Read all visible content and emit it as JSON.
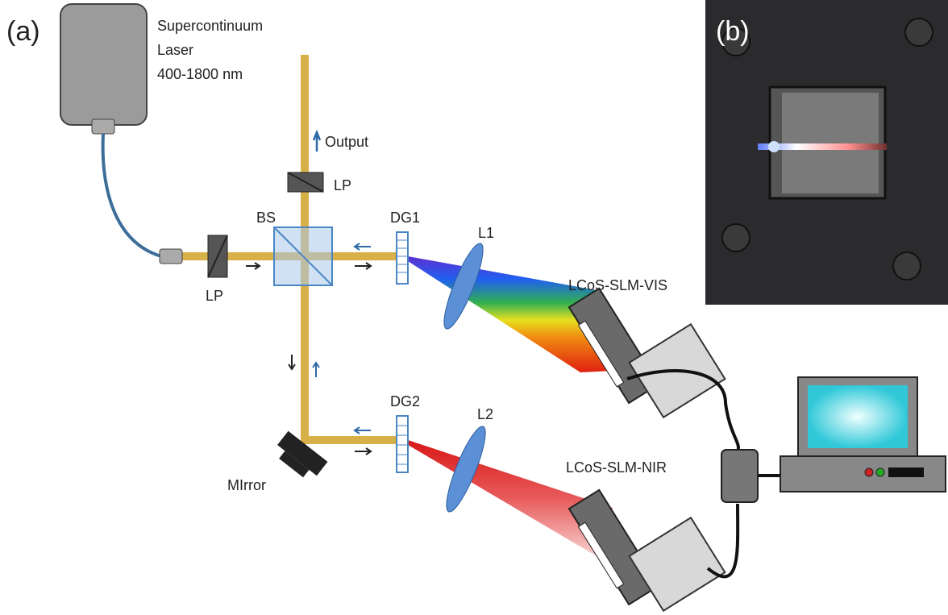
{
  "panel_a": {
    "label": "(a)",
    "laser": [
      "Supercontinuum",
      "Laser",
      "400-1800 nm"
    ],
    "output": "Output",
    "lp_top": "LP",
    "lp_left": "LP",
    "bs": "BS",
    "dg1": "DG1",
    "l1": "L1",
    "slm_vis": "LCoS-SLM-VIS",
    "dg2": "DG2",
    "l2": "L2",
    "mirror": "MIrror",
    "slm_nir": "LCoS-SLM-NIR"
  },
  "panel_b": {
    "label": "(b)"
  }
}
